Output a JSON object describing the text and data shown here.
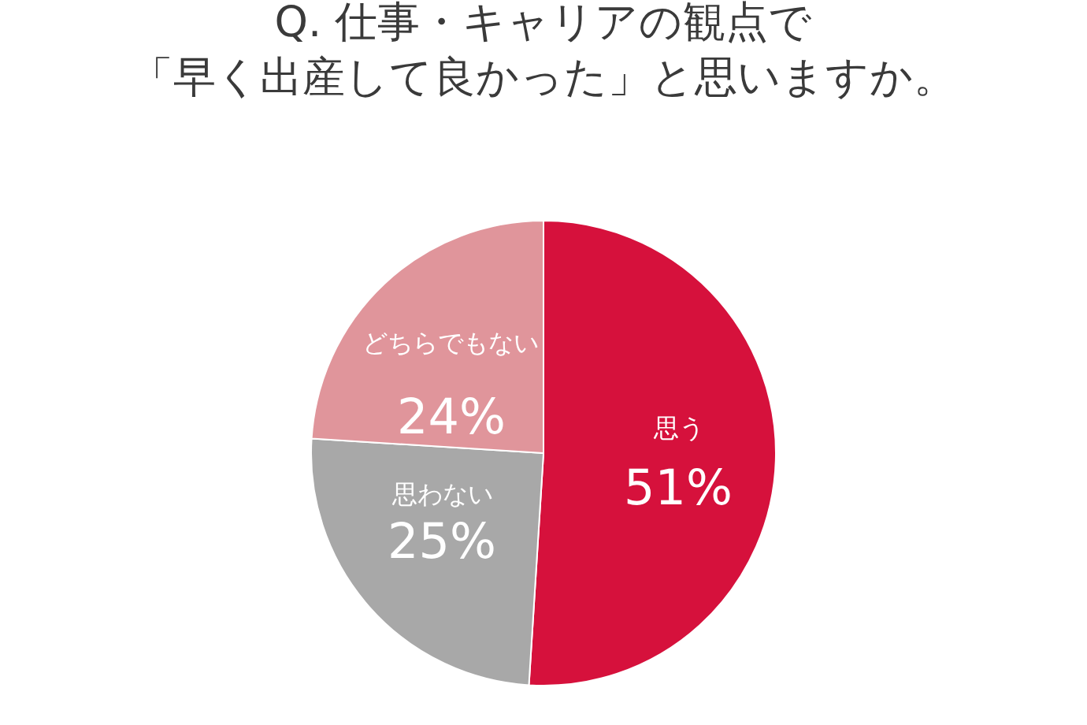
{
  "chart_data": {
    "type": "pie",
    "title": "Q. 仕事・キャリアの観点で",
    "subtitle": "「早く出産して良かった」と思いますか。",
    "categories": [
      "思う",
      "思わない",
      "どちらでもない"
    ],
    "values": [
      51,
      25,
      24
    ],
    "value_labels": [
      "51%",
      "25%",
      "24%"
    ],
    "colors": [
      "#d6113c",
      "#a8a8a8",
      "#e0959b"
    ],
    "legend": false
  }
}
